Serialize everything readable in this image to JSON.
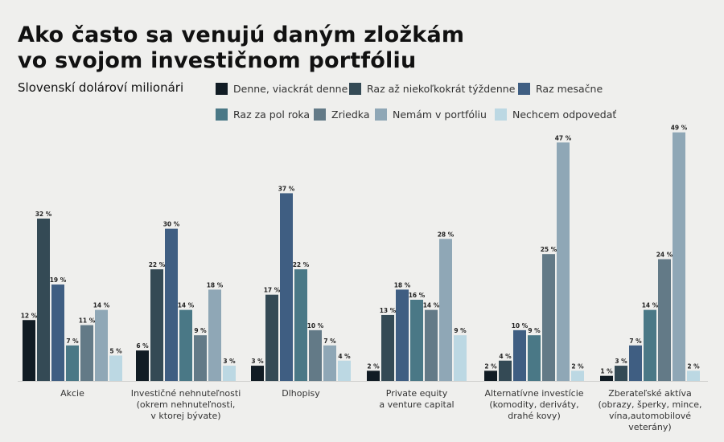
{
  "chart_data": {
    "type": "bar",
    "title": "Ako často sa venujú daným zložkám vo svojom investičnom portfóliu",
    "title_lines": [
      "Ako často sa venujú daným zložkám",
      "vo svojom investičnom portfóliu"
    ],
    "subtitle": "Slovenskí dolároví milionári",
    "categories": [
      [
        "Akcie"
      ],
      [
        "Investičné nehnuteľnosti",
        "(okrem nehnuteľnosti,",
        "v ktorej bývate)"
      ],
      [
        "Dlhopisy"
      ],
      [
        "Private equity",
        "a venture capital"
      ],
      [
        "Alternatívne investície",
        "(komodity, deriváty,",
        "drahé kovy)"
      ],
      [
        "Zberateľské aktíva",
        "(obrazy, šperky, mince,",
        "vína,automobilové",
        "veterány)"
      ]
    ],
    "value_suffix": " %",
    "legend_placement": "top-right",
    "grid": false,
    "ylim": [
      0,
      50
    ],
    "series": [
      {
        "name": "Denne, viackrát denne",
        "color": "#111c24",
        "values": [
          12,
          6,
          3,
          2,
          2,
          1
        ]
      },
      {
        "name": "Raz až niekoľkokrát týždenne",
        "color": "#344a55",
        "values": [
          32,
          22,
          17,
          13,
          4,
          3
        ]
      },
      {
        "name": "Raz mesačne",
        "color": "#3f5e82",
        "values": [
          19,
          30,
          37,
          18,
          10,
          7
        ]
      },
      {
        "name": "Raz za pol roka",
        "color": "#4a7886",
        "values": [
          7,
          14,
          22,
          16,
          9,
          14
        ]
      },
      {
        "name": "Zriedka",
        "color": "#637a87",
        "values": [
          11,
          9,
          10,
          14,
          25,
          24
        ]
      },
      {
        "name": "Nemám v portfóliu",
        "color": "#8fa7b6",
        "values": [
          14,
          18,
          7,
          28,
          47,
          49
        ]
      },
      {
        "name": "Nechcem odpovedať",
        "color": "#bcd8e3",
        "values": [
          5,
          3,
          4,
          9,
          2,
          2
        ]
      }
    ]
  }
}
